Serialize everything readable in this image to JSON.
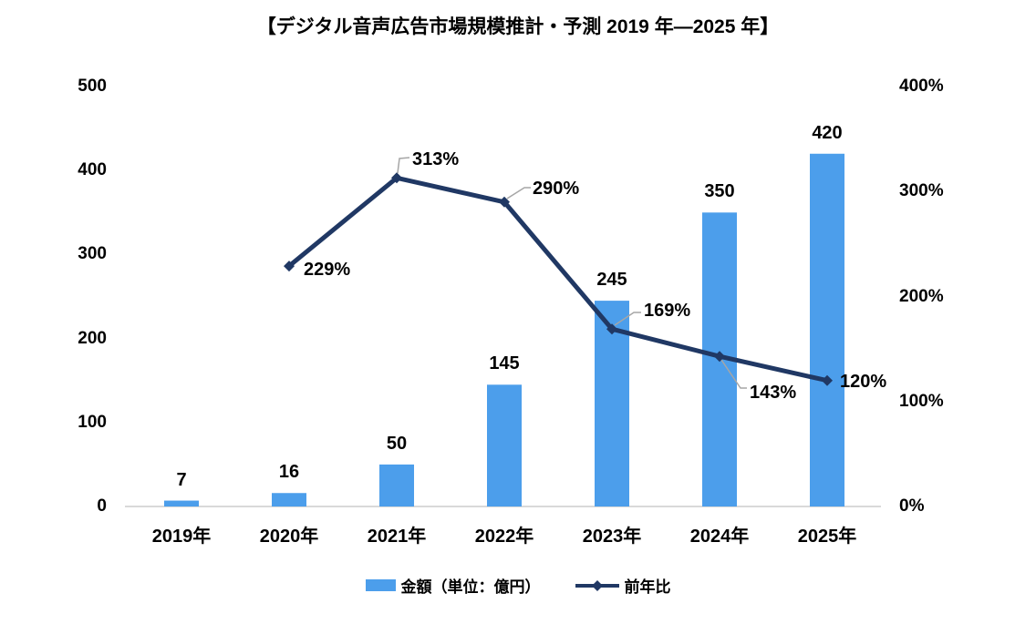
{
  "title": "【デジタル音声広告市場規模推計・予測 2019 年—2025 年】",
  "legend": {
    "bar_label": "金額（単位：億円）",
    "line_label": "前年比"
  },
  "colors": {
    "bar": "#4C9EEB",
    "line": "#203864",
    "axis_line": "#D9D9D9",
    "leader": "#A6A6A6",
    "text": "#000000",
    "background": "#FFFFFF"
  },
  "chart_data": {
    "type": "combo: bar + line",
    "title": "【デジタル音声広告市場規模推計・予測 2019 年—2025 年】",
    "categories": [
      "2019年",
      "2020年",
      "2021年",
      "2022年",
      "2023年",
      "2024年",
      "2025年"
    ],
    "series": [
      {
        "name": "金額（単位：億円）",
        "chart": "bar",
        "axis": "left",
        "values": [
          7,
          16,
          50,
          145,
          245,
          350,
          420
        ],
        "labels": [
          "7",
          "16",
          "50",
          "145",
          "245",
          "350",
          "420"
        ]
      },
      {
        "name": "前年比",
        "chart": "line",
        "axis": "right",
        "values": [
          null,
          229,
          313,
          290,
          169,
          143,
          120
        ],
        "labels": [
          null,
          "229%",
          "313%",
          "290%",
          "169%",
          "143%",
          "120%"
        ]
      }
    ],
    "left_axis": {
      "min": 0,
      "max": 500,
      "ticks": [
        "0",
        "100",
        "200",
        "300",
        "400",
        "500"
      ]
    },
    "right_axis": {
      "min": 0,
      "max": 400,
      "ticks": [
        "0%",
        "100%",
        "200%",
        "300%",
        "400%"
      ]
    },
    "grid": false,
    "legend_position": "bottom"
  }
}
